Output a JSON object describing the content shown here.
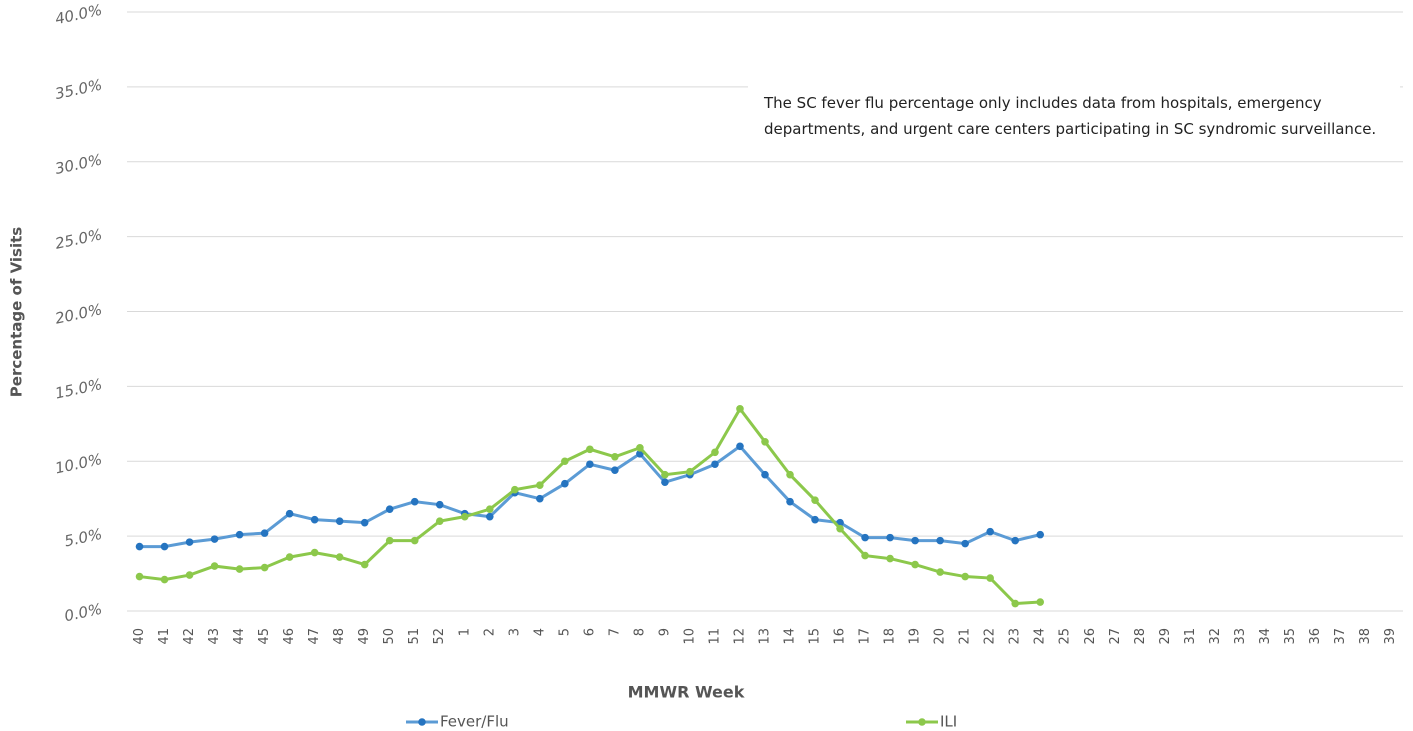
{
  "chart_data": {
    "type": "line",
    "annotation": "The SC fever flu percentage only includes data from hospitals, emergency departments, and urgent care centers participating in SC syndromic surveillance.",
    "x_label": "MMWR Week",
    "y_label": "Percentage of Visits",
    "categories": [
      "40",
      "41",
      "42",
      "43",
      "44",
      "45",
      "46",
      "47",
      "48",
      "49",
      "50",
      "51",
      "52",
      "1",
      "2",
      "3",
      "4",
      "5",
      "6",
      "7",
      "8",
      "9",
      "10",
      "11",
      "12",
      "13",
      "14",
      "15",
      "16",
      "17",
      "18",
      "19",
      "20",
      "21",
      "22",
      "23",
      "24",
      "25",
      "26",
      "27",
      "28",
      "29",
      "31",
      "32",
      "33",
      "34",
      "35",
      "36",
      "37",
      "38",
      "39"
    ],
    "series": [
      {
        "name": "Fever/Flu",
        "color": "#2574c0",
        "line_color": "#5b9bd5",
        "values": [
          4.3,
          4.3,
          4.6,
          4.8,
          5.1,
          5.2,
          6.5,
          6.1,
          6.0,
          5.9,
          6.8,
          7.3,
          7.1,
          6.5,
          6.3,
          7.9,
          7.5,
          8.5,
          9.8,
          9.4,
          10.5,
          8.6,
          9.1,
          9.8,
          11.0,
          9.1,
          7.3,
          6.1,
          5.9,
          4.9,
          4.9,
          4.7,
          4.7,
          4.5,
          5.3,
          4.7,
          5.1,
          null,
          null,
          null,
          null,
          null,
          null,
          null,
          null,
          null,
          null,
          null,
          null,
          null,
          null
        ]
      },
      {
        "name": "ILI",
        "color": "#8cc84b",
        "line_color": "#8cc84b",
        "values": [
          2.3,
          2.1,
          2.4,
          3.0,
          2.8,
          2.9,
          3.6,
          3.9,
          3.6,
          3.1,
          4.7,
          4.7,
          6.0,
          6.3,
          6.8,
          8.1,
          8.4,
          10.0,
          10.8,
          10.3,
          10.9,
          9.1,
          9.3,
          10.6,
          13.5,
          11.3,
          9.1,
          7.4,
          5.5,
          3.7,
          3.5,
          3.1,
          2.6,
          2.3,
          2.2,
          0.5,
          0.6,
          null,
          null,
          null,
          null,
          null,
          null,
          null,
          null,
          null,
          null,
          null,
          null,
          null,
          null
        ]
      }
    ],
    "ylim": [
      0,
      40
    ],
    "yticks": [
      {
        "value": 0,
        "label": "0.0%"
      },
      {
        "value": 5,
        "label": "5.0%"
      },
      {
        "value": 10,
        "label": "10.0%"
      },
      {
        "value": 15,
        "label": "15.0%"
      },
      {
        "value": 20,
        "label": "20.0%"
      },
      {
        "value": 25,
        "label": "25.0%"
      },
      {
        "value": 30,
        "label": "30.0%"
      },
      {
        "value": 35,
        "label": "35.0%"
      },
      {
        "value": 40,
        "label": "40.0%"
      }
    ],
    "grid": true,
    "legend": "bottom"
  }
}
